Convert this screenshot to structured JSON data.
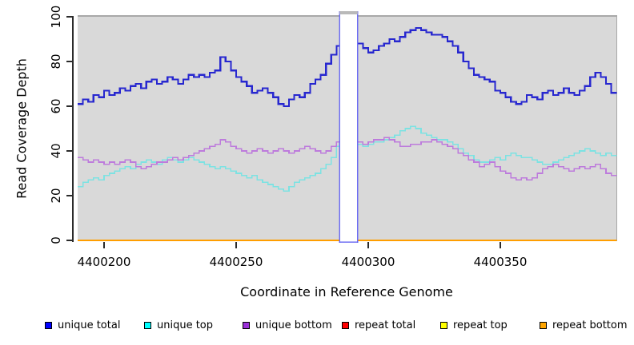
{
  "chart_data": {
    "type": "line",
    "subtype": "step",
    "title": "",
    "xlabel": "Coordinate in Reference Genome",
    "ylabel": "Read Coverage Depth",
    "xlim": [
      4400190,
      4400394
    ],
    "ylim": [
      0,
      100
    ],
    "x_ticks": [
      4400200,
      4400250,
      4400300,
      4400350
    ],
    "y_ticks": [
      0,
      20,
      40,
      60,
      80,
      100
    ],
    "grid": false,
    "legend_position": "bottom",
    "panel_background": "#d9d9d9",
    "masked_region": {
      "x_start": 4400289,
      "x_end": 4400296,
      "fill": "#ffffff",
      "border": "#5c5cf2"
    },
    "x_start": 4400190,
    "x_step": 2,
    "n_points": 103,
    "series": [
      {
        "name": "unique total",
        "color": "#2727cf",
        "legend_color": "#0000ff",
        "line_width": 2.2,
        "values": [
          61,
          63,
          62,
          65,
          64,
          67,
          65,
          66,
          68,
          67,
          69,
          70,
          68,
          71,
          72,
          70,
          71,
          73,
          72,
          70,
          72,
          74,
          73,
          74,
          73,
          75,
          76,
          82,
          80,
          76,
          73,
          71,
          69,
          66,
          67,
          68,
          66,
          64,
          61,
          60,
          63,
          65,
          64,
          66,
          70,
          72,
          74,
          79,
          83,
          87,
          null,
          null,
          null,
          88,
          86,
          84,
          85,
          87,
          88,
          90,
          89,
          91,
          93,
          94,
          95,
          94,
          93,
          92,
          92,
          91,
          89,
          87,
          84,
          80,
          77,
          74,
          73,
          72,
          71,
          67,
          66,
          64,
          62,
          61,
          62,
          65,
          64,
          63,
          66,
          67,
          65,
          66,
          68,
          66,
          65,
          67,
          69,
          73,
          75,
          73,
          70,
          66,
          66
        ]
      },
      {
        "name": "unique top",
        "color": "#7de2e2",
        "legend_color": "#00ffff",
        "line_width": 1.6,
        "values": [
          24,
          26,
          27,
          28,
          27,
          29,
          30,
          31,
          32,
          33,
          32,
          34,
          35,
          36,
          35,
          34,
          36,
          37,
          36,
          35,
          36,
          37,
          36,
          35,
          34,
          33,
          32,
          33,
          32,
          31,
          30,
          29,
          28,
          29,
          27,
          26,
          25,
          24,
          23,
          22,
          24,
          26,
          27,
          28,
          29,
          30,
          32,
          34,
          37,
          42,
          null,
          null,
          null,
          43,
          42,
          43,
          44,
          44,
          45,
          46,
          47,
          49,
          50,
          51,
          50,
          48,
          47,
          46,
          45,
          45,
          44,
          43,
          41,
          39,
          38,
          36,
          35,
          35,
          36,
          37,
          36,
          38,
          39,
          38,
          37,
          37,
          36,
          35,
          34,
          34,
          35,
          36,
          37,
          38,
          39,
          40,
          41,
          40,
          39,
          38,
          39,
          38,
          38
        ]
      },
      {
        "name": "unique bottom",
        "color": "#bd7bdc",
        "legend_color": "#9b30d9",
        "line_width": 1.6,
        "values": [
          37,
          36,
          35,
          36,
          35,
          34,
          35,
          34,
          35,
          36,
          35,
          33,
          32,
          33,
          34,
          35,
          35,
          36,
          37,
          36,
          37,
          38,
          39,
          40,
          41,
          42,
          43,
          45,
          44,
          42,
          41,
          40,
          39,
          40,
          41,
          40,
          39,
          40,
          41,
          40,
          39,
          40,
          41,
          42,
          41,
          40,
          39,
          40,
          42,
          44,
          null,
          null,
          null,
          44,
          43,
          44,
          45,
          45,
          46,
          45,
          44,
          42,
          42,
          43,
          43,
          44,
          44,
          45,
          44,
          43,
          42,
          41,
          39,
          38,
          36,
          35,
          33,
          34,
          35,
          33,
          31,
          30,
          28,
          27,
          28,
          27,
          28,
          30,
          32,
          33,
          34,
          33,
          32,
          31,
          32,
          33,
          32,
          33,
          34,
          32,
          30,
          29,
          29
        ]
      },
      {
        "name": "repeat total",
        "color": "#e00000",
        "legend_color": "#ff0000",
        "line_width": 1.5,
        "constant": 0
      },
      {
        "name": "repeat top",
        "color": "#f5f500",
        "legend_color": "#ffff00",
        "line_width": 1.5,
        "constant": 0
      },
      {
        "name": "repeat bottom",
        "color": "#ff9e00",
        "legend_color": "#ffa500",
        "line_width": 2.2,
        "constant": 0
      }
    ]
  }
}
